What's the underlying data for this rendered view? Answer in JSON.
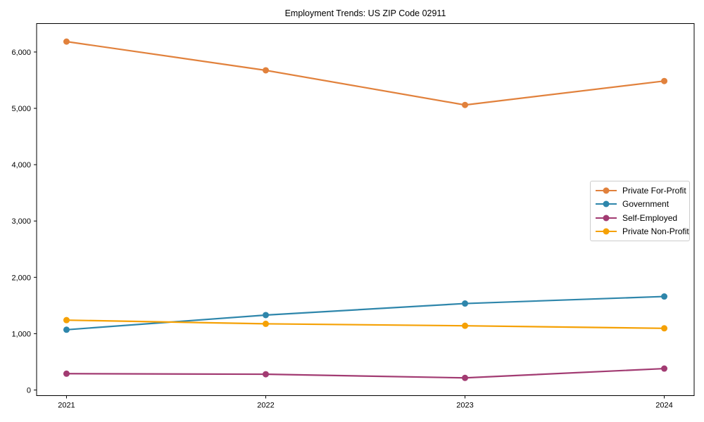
{
  "chart_data": {
    "type": "line",
    "title": "Employment Trends: US ZIP Code 02911",
    "xlabel": "",
    "ylabel": "",
    "x": [
      2021,
      2022,
      2023,
      2024
    ],
    "x_tick_labels": [
      "2021",
      "2022",
      "2023",
      "2024"
    ],
    "y_tick_values": [
      0,
      1000,
      2000,
      3000,
      4000,
      5000,
      6000
    ],
    "y_tick_labels": [
      "0",
      "1,000",
      "2,000",
      "3,000",
      "4,000",
      "5,000",
      "6,000"
    ],
    "xlim": [
      2020.85,
      2024.15
    ],
    "ylim": [
      -100,
      6505
    ],
    "grid": false,
    "legend_position": "center right",
    "series": [
      {
        "name": "Private For-Profit",
        "color": "#E1813C",
        "values": [
          6185,
          5675,
          5060,
          5485
        ]
      },
      {
        "name": "Government",
        "color": "#2E86AB",
        "values": [
          1070,
          1330,
          1535,
          1660
        ]
      },
      {
        "name": "Self-Employed",
        "color": "#A23B72",
        "values": [
          290,
          280,
          215,
          380
        ]
      },
      {
        "name": "Private Non-Profit",
        "color": "#F5A105",
        "values": [
          1240,
          1175,
          1140,
          1095
        ]
      }
    ],
    "marker": "circle",
    "legend_border_color": "#cccccc",
    "axes_color": "#000000"
  }
}
